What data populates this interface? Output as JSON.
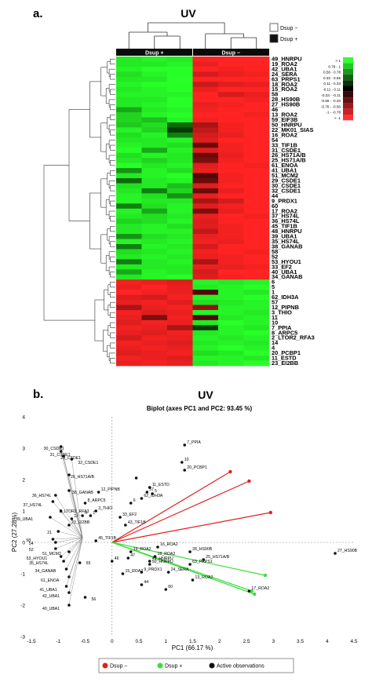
{
  "figure": {
    "panel_a_label": "a.",
    "panel_b_label": "b."
  },
  "chart_data": [
    {
      "type": "heatmap",
      "title": "UV",
      "group_labels": [
        "Dsup +",
        "Dsup −"
      ],
      "legend_groups": [
        {
          "label": "Dsup −",
          "color": "#ffffff"
        },
        {
          "label": "Dsup +",
          "color": "#111111"
        }
      ],
      "color_scale": {
        "labels": [
          "> 1",
          "0.78 - 1",
          "0.56 - 0.78",
          "0.33 - 0.56",
          "0.11 - 0.33",
          "-0.11 - 0.11",
          "-0.33 - -0.11",
          "-0.56 - -0.33",
          "-0.78 - -0.56",
          "-1 - -0.78",
          "< -1"
        ],
        "colors": [
          "#33ff33",
          "#22cc22",
          "#1a991a",
          "#116611",
          "#0a330a",
          "#000000",
          "#330a0a",
          "#661111",
          "#991a1a",
          "#cc2222",
          "#ff3333"
        ]
      },
      "row_labels": [
        "49_HNRPU",
        "19_ROA2",
        "42_UBA1",
        "24_SERA",
        "63_PRPS1",
        "18_ROA2",
        "15_ROA2",
        "58",
        "28_HS90B",
        "27_HS90B",
        "46",
        "13_ROA2",
        "59_EIF3B",
        "50_HNRPU",
        "22_MK01_SIAS",
        "16_ROA2",
        "54",
        "33_TIF1B",
        "31_CSDE1",
        "26_HS71A/B",
        "25_HS71A/B",
        "61_ENOA",
        "41_UBA1",
        "51_MCM2",
        "29_CSDE1",
        "30_CSDE1",
        "32_CSDE1",
        "44",
        "9_PRDX1",
        "60",
        "17_ROA2",
        "37_HS74L",
        "36_HS74L",
        "45_TIF1B",
        "48_HNRPU",
        "39_UBA1",
        "35_HS74L",
        "38_GANAB",
        "58",
        "52",
        "53_HYOU1",
        "33_EF2",
        "40_UBA1",
        "34_GANAB",
        "6",
        "5",
        "1",
        "62_IDH3A",
        "57",
        "12_PIPNB",
        "3_THIO",
        "11",
        "10",
        "7_PPIA",
        "8_ARPC5",
        "2_LTOR2_RFA3",
        "14",
        "4",
        "20_PCBP1",
        "11_ESTD",
        "23_EI2BB"
      ],
      "values": [
        [
          0.9,
          0.95,
          0.9,
          -1.1,
          -1.0,
          -1.0
        ],
        [
          0.9,
          0.9,
          0.95,
          -0.9,
          -1.0,
          -1.1
        ],
        [
          0.95,
          1.0,
          1.0,
          -1.0,
          -0.95,
          -1.0
        ],
        [
          0.85,
          0.95,
          1.0,
          -0.8,
          -0.9,
          -0.95
        ],
        [
          0.9,
          0.9,
          1.0,
          -1.0,
          -1.0,
          -1.1
        ],
        [
          0.95,
          1.0,
          1.0,
          -0.75,
          -0.85,
          -0.9
        ],
        [
          0.9,
          0.95,
          1.0,
          -0.9,
          -1.0,
          -1.05
        ],
        [
          0.95,
          0.95,
          0.95,
          -1.0,
          -0.8,
          -0.9
        ],
        [
          0.9,
          0.9,
          1.0,
          -1.1,
          -1.0,
          -0.95
        ],
        [
          0.9,
          0.95,
          1.0,
          -0.9,
          -0.95,
          -1.0
        ],
        [
          0.6,
          0.9,
          0.95,
          -0.95,
          -1.0,
          -1.0
        ],
        [
          0.8,
          0.95,
          1.0,
          -1.0,
          -1.0,
          -0.95
        ],
        [
          0.8,
          0.7,
          0.95,
          -0.95,
          -1.0,
          -1.0
        ],
        [
          0.75,
          0.85,
          0.3,
          -0.6,
          -0.95,
          -1.0
        ],
        [
          0.95,
          0.8,
          0.1,
          -0.7,
          -0.95,
          -1.05
        ],
        [
          0.85,
          0.95,
          0.4,
          -0.8,
          -0.9,
          -1.0
        ],
        [
          0.9,
          0.9,
          0.95,
          -0.85,
          -1.0,
          -1.0
        ],
        [
          0.95,
          0.9,
          0.85,
          -0.3,
          -0.95,
          -1.0
        ],
        [
          1.0,
          0.6,
          0.95,
          -0.85,
          -0.95,
          -1.0
        ],
        [
          0.85,
          0.95,
          0.9,
          -0.3,
          -0.9,
          -1.0
        ],
        [
          0.9,
          0.8,
          0.9,
          -0.4,
          -0.95,
          -1.0
        ],
        [
          1.0,
          0.9,
          0.95,
          -0.85,
          -1.0,
          -0.95
        ],
        [
          0.5,
          0.95,
          0.85,
          -0.9,
          -1.0,
          -1.05
        ],
        [
          0.9,
          0.95,
          1.0,
          -0.2,
          -0.95,
          -1.0
        ],
        [
          0.3,
          0.9,
          0.95,
          -0.3,
          -0.95,
          -1.0
        ],
        [
          0.85,
          0.9,
          0.7,
          -0.85,
          -1.0,
          -1.0
        ],
        [
          0.9,
          0.4,
          0.8,
          -0.3,
          -0.9,
          -1.0
        ],
        [
          0.95,
          0.85,
          0.5,
          -0.9,
          -1.0,
          -1.05
        ],
        [
          0.95,
          0.9,
          0.9,
          -0.6,
          -0.8,
          -1.0
        ],
        [
          0.4,
          0.85,
          0.95,
          -0.85,
          -0.95,
          -1.0
        ],
        [
          0.95,
          0.6,
          0.95,
          -0.4,
          -0.9,
          -1.0
        ],
        [
          0.9,
          0.85,
          0.9,
          -0.9,
          -1.0,
          -0.95
        ],
        [
          0.8,
          0.85,
          0.95,
          -0.85,
          -1.0,
          -1.0
        ],
        [
          0.9,
          0.95,
          0.85,
          -0.85,
          -0.95,
          -1.0
        ],
        [
          0.9,
          0.95,
          0.95,
          -0.7,
          -0.95,
          -1.05
        ],
        [
          0.5,
          0.85,
          0.9,
          -0.9,
          -0.95,
          -1.0
        ],
        [
          0.95,
          0.9,
          0.95,
          -0.95,
          -0.9,
          -1.0
        ],
        [
          0.4,
          0.95,
          0.9,
          -0.8,
          -1.0,
          -1.0
        ],
        [
          0.85,
          0.9,
          0.95,
          -0.95,
          -1.0,
          -0.95
        ],
        [
          0.9,
          0.95,
          0.9,
          -0.9,
          -0.95,
          -1.0
        ],
        [
          0.4,
          0.9,
          0.95,
          -0.6,
          -0.95,
          -1.0
        ],
        [
          0.9,
          0.9,
          0.9,
          -0.9,
          -0.9,
          -0.95
        ],
        [
          0.6,
          0.95,
          0.9,
          -0.8,
          -1.0,
          -1.05
        ],
        [
          0.9,
          0.95,
          1.0,
          -0.85,
          -0.95,
          -1.0
        ],
        [
          -0.95,
          -0.9,
          -0.85,
          0.95,
          0.9,
          0.95
        ],
        [
          -0.9,
          -1.0,
          -0.9,
          0.9,
          0.95,
          1.0
        ],
        [
          -1.0,
          -0.95,
          -0.9,
          -0.2,
          0.95,
          0.9
        ],
        [
          -0.85,
          -0.8,
          -0.95,
          0.95,
          0.95,
          1.0
        ],
        [
          -0.9,
          -0.95,
          -0.85,
          0.85,
          0.9,
          0.95
        ],
        [
          -0.6,
          -0.9,
          -0.95,
          -0.5,
          0.95,
          0.95
        ],
        [
          -0.95,
          -0.85,
          -0.9,
          0.95,
          0.95,
          0.9
        ],
        [
          -0.9,
          -0.4,
          -0.95,
          -0.2,
          0.9,
          0.95
        ],
        [
          -0.85,
          -0.95,
          -0.9,
          0.9,
          1.0,
          0.95
        ],
        [
          -0.95,
          -0.9,
          -0.6,
          0.1,
          0.95,
          0.9
        ],
        [
          -0.9,
          -0.85,
          -0.95,
          0.9,
          0.95,
          1.0
        ],
        [
          -0.8,
          -0.95,
          -0.9,
          0.95,
          0.9,
          0.95
        ],
        [
          -0.95,
          -0.9,
          -0.85,
          0.9,
          0.95,
          0.9
        ],
        [
          -0.9,
          -0.95,
          -0.9,
          0.95,
          1.0,
          0.95
        ],
        [
          -0.85,
          -0.9,
          -0.95,
          0.85,
          0.9,
          1.0
        ],
        [
          -0.95,
          -0.9,
          -0.85,
          0.95,
          0.95,
          0.9
        ],
        [
          -0.9,
          -0.95,
          -0.9,
          0.9,
          0.95,
          1.0
        ]
      ]
    },
    {
      "type": "scatter",
      "title": "UV",
      "subtitle": "Biplot (axes PC1 and PC2: 93.45 %)",
      "xlabel": "PC1 (66.17 %)",
      "ylabel": "PC2 (27.28%)",
      "xlim": [
        -1.5,
        4.5
      ],
      "ylim": [
        -3,
        4
      ],
      "xticks": [
        -1.5,
        -1,
        -0.5,
        0,
        0.5,
        1,
        1.5,
        2,
        2.5,
        3,
        3.5,
        4,
        4.5
      ],
      "yticks": [
        -3,
        -2,
        -1,
        0,
        1,
        2,
        3,
        4
      ],
      "legend": [
        {
          "name": "Dsup −",
          "color": "#e02020"
        },
        {
          "name": "Dsup +",
          "color": "#3fdc3f"
        },
        {
          "name": "Active observations",
          "color": "#111111"
        }
      ],
      "vectors": [
        {
          "series": "Dsup −",
          "x": 2.2,
          "y": 2.25
        },
        {
          "series": "Dsup −",
          "x": 2.55,
          "y": 1.95
        },
        {
          "series": "Dsup −",
          "x": 2.95,
          "y": 0.95
        },
        {
          "series": "Dsup +",
          "x": 2.6,
          "y": -1.55
        },
        {
          "series": "Dsup +",
          "x": 2.65,
          "y": -1.65
        },
        {
          "series": "Dsup +",
          "x": 2.85,
          "y": -1.05
        }
      ],
      "points": [
        {
          "label": "7_PPIA",
          "x": 1.35,
          "y": 3.1
        },
        {
          "label": "10",
          "x": 1.3,
          "y": 2.55
        },
        {
          "label": "20_PCBP1",
          "x": 1.35,
          "y": 2.3
        },
        {
          "label": "",
          "x": 0.45,
          "y": 2.05
        },
        {
          "label": "11_ESTD",
          "x": 0.7,
          "y": 1.75
        },
        {
          "label": "57",
          "x": 0.65,
          "y": 1.6
        },
        {
          "label": "5",
          "x": 0.75,
          "y": 1.55
        },
        {
          "label": "62_IDH3A",
          "x": 0.55,
          "y": 1.4
        },
        {
          "label": "6",
          "x": 0.35,
          "y": 1.25
        },
        {
          "label": "12_PIPNB",
          "x": -0.25,
          "y": 1.6
        },
        {
          "label": "8_ARPC5",
          "x": -0.5,
          "y": 1.25
        },
        {
          "label": "3_THIO",
          "x": -0.3,
          "y": 1.0
        },
        {
          "label": "1",
          "x": -0.4,
          "y": 0.85
        },
        {
          "label": "33_EF2",
          "x": 0.15,
          "y": 0.8
        },
        {
          "label": "43_TIF1B",
          "x": 0.25,
          "y": 0.55
        },
        {
          "label": "14",
          "x": -0.75,
          "y": 0.75
        },
        {
          "label": "23_EI2BB",
          "x": -0.8,
          "y": 0.55
        },
        {
          "label": "45_TIF1B",
          "x": -0.3,
          "y": 0.05
        },
        {
          "label": "4",
          "x": -0.55,
          "y": 0.85
        },
        {
          "label": "16_ROA2",
          "x": 0.85,
          "y": -0.15
        },
        {
          "label": "19_ROA2",
          "x": 0.35,
          "y": -0.3
        },
        {
          "label": "18_ROA2",
          "x": 0.8,
          "y": -0.45
        },
        {
          "label": "47",
          "x": 0.3,
          "y": -0.5
        },
        {
          "label": "49_HNRPU",
          "x": 0.7,
          "y": -0.6
        },
        {
          "label": "50_HNRPU",
          "x": 0.7,
          "y": -0.7
        },
        {
          "label": "46",
          "x": 0.0,
          "y": -0.6
        },
        {
          "label": "9_PRDX1",
          "x": 0.55,
          "y": -0.95
        },
        {
          "label": "15_ROA2",
          "x": 0.2,
          "y": -1.0
        },
        {
          "label": "24_SERA",
          "x": 1.05,
          "y": -0.95
        },
        {
          "label": "44",
          "x": 0.55,
          "y": -1.35
        },
        {
          "label": "60",
          "x": 1.0,
          "y": -1.5
        },
        {
          "label": "28_HS90B",
          "x": 1.45,
          "y": -0.3
        },
        {
          "label": "25_HS71A/B",
          "x": 1.7,
          "y": -0.55
        },
        {
          "label": "63_PRPS1",
          "x": 1.45,
          "y": -0.7
        },
        {
          "label": "13_ROA2",
          "x": 1.5,
          "y": -1.2
        },
        {
          "label": "17_ROA2",
          "x": 2.55,
          "y": -1.55
        },
        {
          "label": "27_HS90B",
          "x": 4.15,
          "y": -0.35
        },
        {
          "label": "30_CSDE1",
          "x": -0.95,
          "y": 3.05
        },
        {
          "label": "31_CSDE1",
          "x": -0.95,
          "y": 2.9
        },
        {
          "label": "29_CSDE1",
          "x": -0.9,
          "y": 2.75
        },
        {
          "label": "32_CSDE1",
          "x": -0.75,
          "y": 2.65
        },
        {
          "label": "26_HS71A/B",
          "x": -0.8,
          "y": 2.15
        },
        {
          "label": "38_GANAB",
          "x": -0.8,
          "y": 1.65
        },
        {
          "label": "36_HS74L",
          "x": -1.05,
          "y": 1.5
        },
        {
          "label": "37_HS74L",
          "x": -1.1,
          "y": 1.3
        },
        {
          "label": "2_LTOR2_RFA3",
          "x": -0.95,
          "y": 1.0
        },
        {
          "label": "39_UBA1",
          "x": -1.15,
          "y": 0.8
        },
        {
          "label": "21",
          "x": -1.0,
          "y": 0.35
        },
        {
          "label": "58",
          "x": -1.1,
          "y": 0.1
        },
        {
          "label": "54",
          "x": -1.05,
          "y": 0.0
        },
        {
          "label": "52",
          "x": -1.05,
          "y": -0.2
        },
        {
          "label": "51_MCM2",
          "x": -0.8,
          "y": -0.3
        },
        {
          "label": "53_HYOU1",
          "x": -0.95,
          "y": -0.45
        },
        {
          "label": "35_HS74L",
          "x": -0.9,
          "y": -0.6
        },
        {
          "label": "55",
          "x": -0.6,
          "y": -0.65
        },
        {
          "label": "34_GANAB",
          "x": -0.85,
          "y": -0.85
        },
        {
          "label": "61_ENOA",
          "x": -0.8,
          "y": -1.1
        },
        {
          "label": "41_UBA1",
          "x": -0.85,
          "y": -1.4
        },
        {
          "label": "42_UBA1",
          "x": -0.8,
          "y": -1.6
        },
        {
          "label": "40_UBA1",
          "x": -0.8,
          "y": -2.0
        },
        {
          "label": "56",
          "x": -0.5,
          "y": -1.75
        }
      ]
    }
  ]
}
